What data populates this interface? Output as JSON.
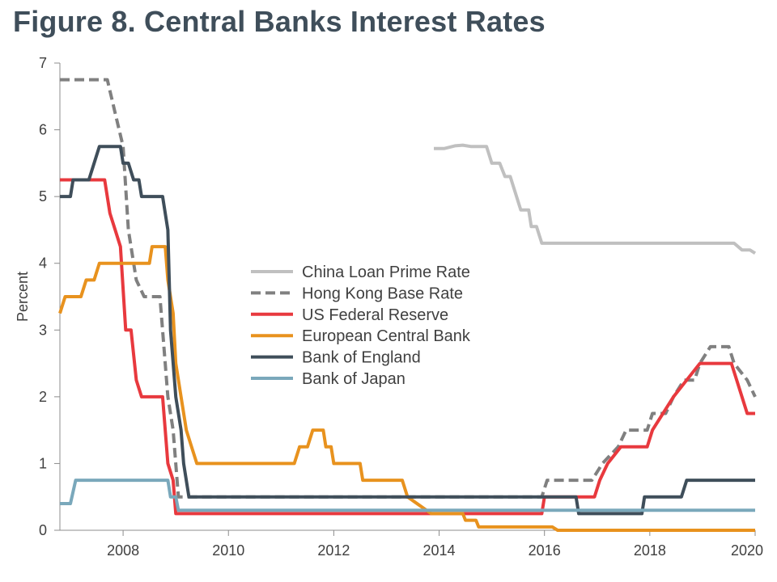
{
  "title": "Figure 8. Central Banks Interest Rates",
  "chart_data": {
    "type": "line",
    "title": "Figure 8. Central Banks Interest Rates",
    "xlabel": "",
    "ylabel": "Percent",
    "xlim": [
      2006.8,
      2020.0
    ],
    "ylim": [
      0,
      7
    ],
    "x_ticks": [
      2008,
      2010,
      2012,
      2014,
      2016,
      2018,
      2020
    ],
    "y_ticks": [
      0,
      1,
      2,
      3,
      4,
      5,
      6,
      7
    ],
    "grid": false,
    "legend_position": "center",
    "series": [
      {
        "name": "China Loan Prime Rate",
        "color": "#c0c0c0",
        "dash": "solid",
        "points": [
          [
            2013.9,
            5.72
          ],
          [
            2014.1,
            5.72
          ],
          [
            2014.3,
            5.76
          ],
          [
            2014.45,
            5.77
          ],
          [
            2014.6,
            5.75
          ],
          [
            2014.9,
            5.75
          ],
          [
            2015.0,
            5.5
          ],
          [
            2015.15,
            5.5
          ],
          [
            2015.25,
            5.3
          ],
          [
            2015.35,
            5.3
          ],
          [
            2015.45,
            5.05
          ],
          [
            2015.55,
            4.8
          ],
          [
            2015.7,
            4.8
          ],
          [
            2015.75,
            4.55
          ],
          [
            2015.85,
            4.55
          ],
          [
            2015.95,
            4.3
          ],
          [
            2019.6,
            4.3
          ],
          [
            2019.75,
            4.2
          ],
          [
            2019.9,
            4.2
          ],
          [
            2020.0,
            4.15
          ]
        ]
      },
      {
        "name": "Hong Kong Base Rate",
        "color": "#808080",
        "dash": "dashed",
        "points": [
          [
            2006.8,
            6.75
          ],
          [
            2007.7,
            6.75
          ],
          [
            2007.85,
            6.25
          ],
          [
            2008.0,
            5.75
          ],
          [
            2008.1,
            4.5
          ],
          [
            2008.25,
            3.75
          ],
          [
            2008.4,
            3.5
          ],
          [
            2008.7,
            3.5
          ],
          [
            2008.85,
            2.0
          ],
          [
            2008.95,
            1.5
          ],
          [
            2009.05,
            0.5
          ],
          [
            2015.95,
            0.5
          ],
          [
            2016.05,
            0.75
          ],
          [
            2016.9,
            0.75
          ],
          [
            2017.1,
            1.0
          ],
          [
            2017.4,
            1.25
          ],
          [
            2017.55,
            1.5
          ],
          [
            2017.95,
            1.5
          ],
          [
            2018.05,
            1.75
          ],
          [
            2018.3,
            1.75
          ],
          [
            2018.45,
            2.0
          ],
          [
            2018.65,
            2.25
          ],
          [
            2018.85,
            2.25
          ],
          [
            2018.95,
            2.5
          ],
          [
            2019.15,
            2.75
          ],
          [
            2019.5,
            2.75
          ],
          [
            2019.6,
            2.5
          ],
          [
            2019.85,
            2.25
          ],
          [
            2020.0,
            2.0
          ]
        ]
      },
      {
        "name": "US Federal Reserve",
        "color": "#e8393e",
        "dash": "solid",
        "points": [
          [
            2006.8,
            5.25
          ],
          [
            2007.65,
            5.25
          ],
          [
            2007.75,
            4.75
          ],
          [
            2007.85,
            4.5
          ],
          [
            2007.95,
            4.25
          ],
          [
            2008.05,
            3.0
          ],
          [
            2008.15,
            3.0
          ],
          [
            2008.25,
            2.25
          ],
          [
            2008.35,
            2.0
          ],
          [
            2008.75,
            2.0
          ],
          [
            2008.85,
            1.0
          ],
          [
            2008.95,
            0.75
          ],
          [
            2009.0,
            0.25
          ],
          [
            2015.95,
            0.25
          ],
          [
            2016.0,
            0.5
          ],
          [
            2016.95,
            0.5
          ],
          [
            2017.05,
            0.75
          ],
          [
            2017.2,
            1.0
          ],
          [
            2017.45,
            1.25
          ],
          [
            2017.95,
            1.25
          ],
          [
            2018.05,
            1.5
          ],
          [
            2018.25,
            1.75
          ],
          [
            2018.45,
            2.0
          ],
          [
            2018.7,
            2.25
          ],
          [
            2018.95,
            2.5
          ],
          [
            2019.55,
            2.5
          ],
          [
            2019.65,
            2.25
          ],
          [
            2019.75,
            2.0
          ],
          [
            2019.85,
            1.75
          ],
          [
            2020.0,
            1.75
          ]
        ]
      },
      {
        "name": "European Central Bank",
        "color": "#e8921e",
        "dash": "solid",
        "points": [
          [
            2006.8,
            3.25
          ],
          [
            2006.9,
            3.5
          ],
          [
            2007.2,
            3.5
          ],
          [
            2007.3,
            3.75
          ],
          [
            2007.45,
            3.75
          ],
          [
            2007.55,
            4.0
          ],
          [
            2008.5,
            4.0
          ],
          [
            2008.55,
            4.25
          ],
          [
            2008.8,
            4.25
          ],
          [
            2008.85,
            3.75
          ],
          [
            2008.95,
            3.25
          ],
          [
            2009.0,
            2.5
          ],
          [
            2009.1,
            2.0
          ],
          [
            2009.2,
            1.5
          ],
          [
            2009.3,
            1.25
          ],
          [
            2009.4,
            1.0
          ],
          [
            2011.25,
            1.0
          ],
          [
            2011.35,
            1.25
          ],
          [
            2011.5,
            1.25
          ],
          [
            2011.6,
            1.5
          ],
          [
            2011.8,
            1.5
          ],
          [
            2011.85,
            1.25
          ],
          [
            2011.95,
            1.25
          ],
          [
            2012.0,
            1.0
          ],
          [
            2012.5,
            1.0
          ],
          [
            2012.55,
            0.75
          ],
          [
            2013.3,
            0.75
          ],
          [
            2013.4,
            0.5
          ],
          [
            2013.85,
            0.25
          ],
          [
            2014.45,
            0.25
          ],
          [
            2014.5,
            0.15
          ],
          [
            2014.7,
            0.15
          ],
          [
            2014.75,
            0.05
          ],
          [
            2016.15,
            0.05
          ],
          [
            2016.25,
            0.0
          ],
          [
            2020.0,
            0.0
          ]
        ]
      },
      {
        "name": "Bank of England",
        "color": "#3f4e5a",
        "dash": "solid",
        "points": [
          [
            2006.8,
            5.0
          ],
          [
            2007.0,
            5.0
          ],
          [
            2007.05,
            5.25
          ],
          [
            2007.35,
            5.25
          ],
          [
            2007.45,
            5.5
          ],
          [
            2007.55,
            5.75
          ],
          [
            2007.95,
            5.75
          ],
          [
            2008.0,
            5.5
          ],
          [
            2008.1,
            5.5
          ],
          [
            2008.2,
            5.25
          ],
          [
            2008.3,
            5.25
          ],
          [
            2008.35,
            5.0
          ],
          [
            2008.75,
            5.0
          ],
          [
            2008.85,
            4.5
          ],
          [
            2008.9,
            3.0
          ],
          [
            2009.0,
            2.0
          ],
          [
            2009.1,
            1.5
          ],
          [
            2009.15,
            1.0
          ],
          [
            2009.25,
            0.5
          ],
          [
            2016.6,
            0.5
          ],
          [
            2016.65,
            0.25
          ],
          [
            2017.85,
            0.25
          ],
          [
            2017.9,
            0.5
          ],
          [
            2018.6,
            0.5
          ],
          [
            2018.7,
            0.75
          ],
          [
            2020.0,
            0.75
          ]
        ]
      },
      {
        "name": "Bank of Japan",
        "color": "#7aa8bb",
        "dash": "solid",
        "points": [
          [
            2006.8,
            0.4
          ],
          [
            2007.0,
            0.4
          ],
          [
            2007.1,
            0.75
          ],
          [
            2008.85,
            0.75
          ],
          [
            2008.9,
            0.5
          ],
          [
            2009.0,
            0.5
          ],
          [
            2009.05,
            0.3
          ],
          [
            2020.0,
            0.3
          ]
        ]
      }
    ]
  }
}
